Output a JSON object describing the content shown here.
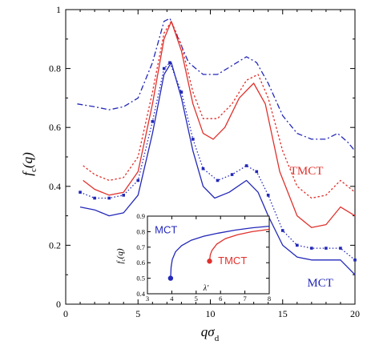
{
  "chart_data": [
    {
      "type": "line",
      "title": "",
      "xlabel": "qσ",
      "xlabel_sub": "d",
      "ylabel": "f",
      "ylabel_sub": "c",
      "ylabel_arg": "(q)",
      "xlim": [
        0,
        20
      ],
      "ylim": [
        0,
        1
      ],
      "xticks": [
        "0",
        "5",
        "10",
        "15",
        "20"
      ],
      "yticks": [
        "0",
        "0.2",
        "0.4",
        "0.6",
        "0.8",
        "1"
      ],
      "grid": false,
      "annotations": [
        {
          "text": "TMCT",
          "color": "#e0312c",
          "x": 15.5,
          "y": 0.44
        },
        {
          "text": "MCT",
          "color": "#2328b8",
          "x": 16.7,
          "y": 0.06
        }
      ],
      "series": [
        {
          "color": "#2328b8",
          "style": "dash-dot",
          "points": [
            [
              0.8,
              0.68
            ],
            [
              2,
              0.67
            ],
            [
              3,
              0.66
            ],
            [
              4,
              0.67
            ],
            [
              5,
              0.7
            ],
            [
              6,
              0.82
            ],
            [
              6.8,
              0.96
            ],
            [
              7.2,
              0.97
            ],
            [
              7.8,
              0.9
            ],
            [
              8.5,
              0.82
            ],
            [
              9.5,
              0.78
            ],
            [
              10.5,
              0.78
            ],
            [
              11.5,
              0.81
            ],
            [
              12.5,
              0.84
            ],
            [
              13.2,
              0.82
            ],
            [
              14,
              0.75
            ],
            [
              15,
              0.64
            ],
            [
              16,
              0.58
            ],
            [
              17,
              0.56
            ],
            [
              18,
              0.56
            ],
            [
              18.8,
              0.58
            ],
            [
              19.5,
              0.55
            ],
            [
              20,
              0.52
            ]
          ]
        },
        {
          "color": "#e0312c",
          "style": "dotted",
          "points": [
            [
              1.2,
              0.47
            ],
            [
              2,
              0.44
            ],
            [
              3,
              0.42
            ],
            [
              4,
              0.43
            ],
            [
              5,
              0.5
            ],
            [
              6,
              0.72
            ],
            [
              6.8,
              0.92
            ],
            [
              7.3,
              0.96
            ],
            [
              8,
              0.88
            ],
            [
              8.8,
              0.72
            ],
            [
              9.5,
              0.63
            ],
            [
              10.5,
              0.63
            ],
            [
              11.5,
              0.68
            ],
            [
              12.5,
              0.76
            ],
            [
              13.3,
              0.78
            ],
            [
              14,
              0.7
            ],
            [
              15,
              0.52
            ],
            [
              16,
              0.4
            ],
            [
              17,
              0.36
            ],
            [
              18,
              0.37
            ],
            [
              19,
              0.42
            ],
            [
              20,
              0.38
            ]
          ]
        },
        {
          "color": "#e0312c",
          "style": "solid",
          "points": [
            [
              1.2,
              0.42
            ],
            [
              2,
              0.39
            ],
            [
              3,
              0.37
            ],
            [
              4,
              0.38
            ],
            [
              5,
              0.45
            ],
            [
              6,
              0.68
            ],
            [
              6.8,
              0.9
            ],
            [
              7.3,
              0.96
            ],
            [
              8,
              0.86
            ],
            [
              8.8,
              0.68
            ],
            [
              9.5,
              0.58
            ],
            [
              10.2,
              0.56
            ],
            [
              11,
              0.6
            ],
            [
              12,
              0.7
            ],
            [
              13,
              0.75
            ],
            [
              13.8,
              0.68
            ],
            [
              14.8,
              0.45
            ],
            [
              16,
              0.3
            ],
            [
              17,
              0.26
            ],
            [
              18,
              0.27
            ],
            [
              19,
              0.33
            ],
            [
              20,
              0.3
            ]
          ]
        },
        {
          "color": "#2328b8",
          "style": "dotted-markers",
          "points": [
            [
              1,
              0.38
            ],
            [
              2,
              0.36
            ],
            [
              3,
              0.36
            ],
            [
              4,
              0.37
            ],
            [
              5,
              0.42
            ],
            [
              6,
              0.62
            ],
            [
              6.8,
              0.8
            ],
            [
              7.2,
              0.82
            ],
            [
              8,
              0.72
            ],
            [
              8.8,
              0.56
            ],
            [
              9.5,
              0.46
            ],
            [
              10.5,
              0.42
            ],
            [
              11.5,
              0.44
            ],
            [
              12.5,
              0.47
            ],
            [
              13.2,
              0.45
            ],
            [
              14,
              0.37
            ],
            [
              15,
              0.25
            ],
            [
              16,
              0.2
            ],
            [
              17,
              0.19
            ],
            [
              18,
              0.19
            ],
            [
              19,
              0.19
            ],
            [
              20,
              0.15
            ]
          ]
        },
        {
          "color": "#2328b8",
          "style": "solid",
          "points": [
            [
              1,
              0.33
            ],
            [
              2,
              0.32
            ],
            [
              3,
              0.3
            ],
            [
              4,
              0.31
            ],
            [
              5,
              0.37
            ],
            [
              6,
              0.58
            ],
            [
              6.8,
              0.78
            ],
            [
              7.3,
              0.82
            ],
            [
              8,
              0.7
            ],
            [
              8.8,
              0.52
            ],
            [
              9.5,
              0.4
            ],
            [
              10.3,
              0.36
            ],
            [
              11.3,
              0.38
            ],
            [
              12.5,
              0.42
            ],
            [
              13.3,
              0.38
            ],
            [
              14,
              0.3
            ],
            [
              15,
              0.2
            ],
            [
              16,
              0.16
            ],
            [
              17,
              0.15
            ],
            [
              18,
              0.15
            ],
            [
              19,
              0.15
            ],
            [
              20,
              0.1
            ]
          ]
        }
      ]
    },
    {
      "type": "line",
      "title": "",
      "xlabel": "λ'",
      "ylabel": "f",
      "ylabel_sub": "c",
      "ylabel_arg": "(q)",
      "xlim": [
        3,
        8
      ],
      "ylim": [
        0.4,
        0.9
      ],
      "xticks": [
        "3",
        "4",
        "5",
        "6",
        "7",
        "8"
      ],
      "yticks": [
        "0.4",
        "0.5",
        "0.6",
        "0.7",
        "0.8",
        "0.9"
      ],
      "annotations": [
        {
          "text": "MCT",
          "color": "#2328b8",
          "x": 3.3,
          "y": 0.79
        },
        {
          "text": "TMCT",
          "color": "#e0312c",
          "x": 5.9,
          "y": 0.59
        }
      ],
      "series": [
        {
          "color": "#2328b8",
          "style": "solid",
          "endpoint": [
            3.95,
            0.5
          ],
          "points": [
            [
              3.95,
              0.5
            ],
            [
              3.97,
              0.57
            ],
            [
              4.02,
              0.62
            ],
            [
              4.15,
              0.67
            ],
            [
              4.4,
              0.71
            ],
            [
              4.8,
              0.745
            ],
            [
              5.3,
              0.77
            ],
            [
              5.9,
              0.79
            ],
            [
              6.6,
              0.81
            ],
            [
              7.3,
              0.825
            ],
            [
              8,
              0.835
            ]
          ]
        },
        {
          "color": "#e0312c",
          "style": "solid",
          "endpoint": [
            5.55,
            0.61
          ],
          "points": [
            [
              5.55,
              0.61
            ],
            [
              5.58,
              0.65
            ],
            [
              5.65,
              0.68
            ],
            [
              5.85,
              0.72
            ],
            [
              6.2,
              0.755
            ],
            [
              6.7,
              0.78
            ],
            [
              7.3,
              0.8
            ],
            [
              8,
              0.815
            ]
          ]
        }
      ]
    }
  ]
}
